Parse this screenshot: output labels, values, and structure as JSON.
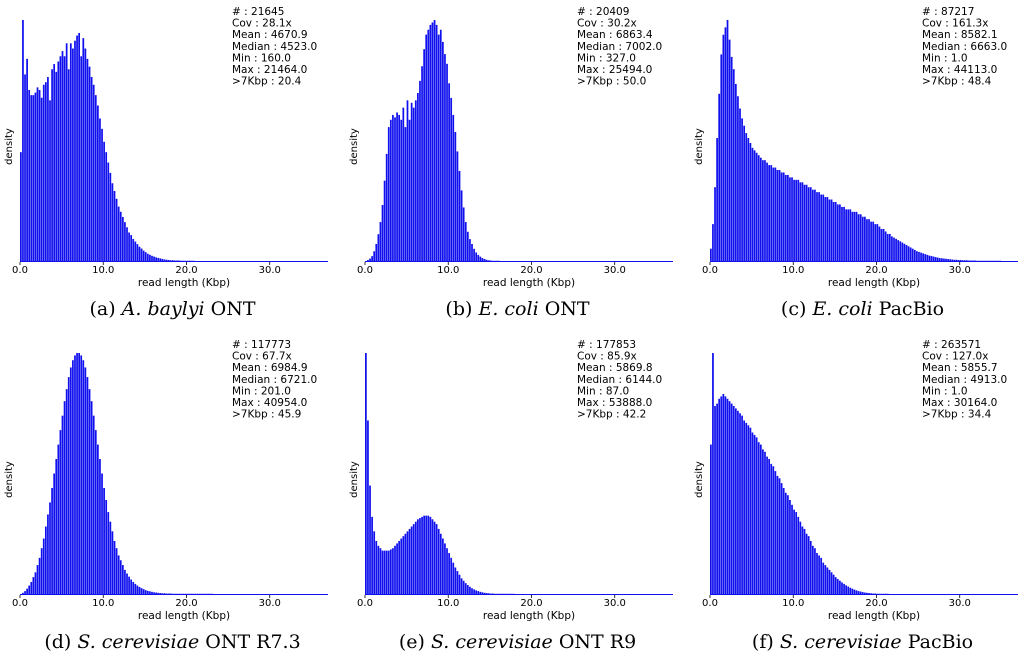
{
  "chart_data": [
    {
      "type": "bar",
      "caption": {
        "letter": "(a)",
        "species": "A. baylyi",
        "tech": "ONT"
      },
      "xlabel": "read length (Kbp)",
      "ylabel": "density",
      "xlim": [
        0,
        37
      ],
      "xticks": [
        "0.0",
        "10.0",
        "20.0",
        "30.0"
      ],
      "color": "#1010ee",
      "stats": [
        "# : 21645",
        "Cov : 28.1x",
        "Mean : 4670.9",
        "Median : 4523.0",
        "Min : 160.0",
        "Max : 21464.0",
        ">7Kbp : 20.4"
      ],
      "bin_width": 0.25,
      "values": [
        0.42,
        0.93,
        0.72,
        0.78,
        0.66,
        0.64,
        0.64,
        0.65,
        0.67,
        0.66,
        0.63,
        0.68,
        0.69,
        0.71,
        0.62,
        0.74,
        0.76,
        0.73,
        0.77,
        0.79,
        0.81,
        0.79,
        0.84,
        0.74,
        0.84,
        0.82,
        0.85,
        0.87,
        0.88,
        0.79,
        0.86,
        0.82,
        0.78,
        0.75,
        0.71,
        0.68,
        0.64,
        0.6,
        0.55,
        0.51,
        0.46,
        0.42,
        0.38,
        0.34,
        0.3,
        0.27,
        0.24,
        0.21,
        0.19,
        0.17,
        0.15,
        0.13,
        0.11,
        0.1,
        0.085,
        0.075,
        0.065,
        0.055,
        0.048,
        0.04,
        0.034,
        0.028,
        0.024,
        0.02,
        0.017,
        0.014,
        0.012,
        0.01,
        0.008,
        0.006,
        0.005,
        0.004,
        0.003,
        0.003,
        0.002,
        0.002,
        0.002,
        0.001,
        0.001,
        0.001,
        0.001,
        0.001,
        0.001,
        0.001
      ]
    },
    {
      "type": "bar",
      "caption": {
        "letter": "(b)",
        "species": "E. coli",
        "tech": "ONT"
      },
      "xlabel": "read length (Kbp)",
      "ylabel": "density",
      "xlim": [
        0,
        37
      ],
      "xticks": [
        "0.0",
        "10.0",
        "20.0",
        "30.0"
      ],
      "color": "#1010ee",
      "stats": [
        "# : 20409",
        "Cov : 30.2x",
        "Mean : 6863.4",
        "Median : 7002.0",
        "Min : 327.0",
        "Max : 25494.0",
        ">7Kbp : 50.0"
      ],
      "bin_width": 0.25,
      "values": [
        0,
        0.004,
        0.01,
        0.02,
        0.04,
        0.07,
        0.11,
        0.16,
        0.23,
        0.33,
        0.44,
        0.55,
        0.58,
        0.6,
        0.59,
        0.61,
        0.6,
        0.58,
        0.63,
        0.55,
        0.66,
        0.58,
        0.65,
        0.63,
        0.66,
        0.69,
        0.74,
        0.8,
        0.87,
        0.93,
        0.95,
        0.97,
        0.98,
        0.99,
        0.97,
        0.93,
        0.95,
        0.9,
        0.85,
        0.81,
        0.73,
        0.67,
        0.6,
        0.53,
        0.45,
        0.37,
        0.29,
        0.22,
        0.16,
        0.12,
        0.09,
        0.07,
        0.05,
        0.035,
        0.025,
        0.018,
        0.012,
        0.008,
        0.005,
        0.003,
        0.002,
        0.001,
        0.001,
        0.001,
        0.001
      ]
    },
    {
      "type": "bar",
      "caption": {
        "letter": "(c)",
        "species": "E. coli",
        "tech": "PacBio"
      },
      "xlabel": "read length (Kbp)",
      "ylabel": "density",
      "xlim": [
        0,
        37
      ],
      "xticks": [
        "0.0",
        "10.0",
        "20.0",
        "30.0"
      ],
      "color": "#1010ee",
      "stats": [
        "# : 87217",
        "Cov : 161.3x",
        "Mean : 8582.1",
        "Median : 6663.0",
        "Min : 1.0",
        "Max : 44113.0",
        ">7Kbp : 48.4"
      ],
      "bin_width": 0.25,
      "values": [
        0.05,
        0.15,
        0.3,
        0.5,
        0.68,
        0.84,
        0.92,
        0.95,
        0.98,
        0.9,
        0.83,
        0.78,
        0.72,
        0.67,
        0.62,
        0.58,
        0.55,
        0.52,
        0.5,
        0.48,
        0.46,
        0.45,
        0.44,
        0.43,
        0.42,
        0.41,
        0.41,
        0.4,
        0.39,
        0.39,
        0.38,
        0.38,
        0.37,
        0.37,
        0.36,
        0.36,
        0.35,
        0.35,
        0.34,
        0.34,
        0.33,
        0.33,
        0.33,
        0.32,
        0.32,
        0.31,
        0.31,
        0.3,
        0.3,
        0.29,
        0.29,
        0.28,
        0.28,
        0.27,
        0.27,
        0.26,
        0.26,
        0.25,
        0.25,
        0.24,
        0.24,
        0.23,
        0.23,
        0.22,
        0.22,
        0.21,
        0.21,
        0.21,
        0.2,
        0.2,
        0.2,
        0.19,
        0.19,
        0.18,
        0.18,
        0.17,
        0.17,
        0.16,
        0.16,
        0.15,
        0.15,
        0.14,
        0.13,
        0.13,
        0.12,
        0.11,
        0.11,
        0.1,
        0.095,
        0.09,
        0.085,
        0.08,
        0.075,
        0.07,
        0.065,
        0.06,
        0.055,
        0.05,
        0.045,
        0.04,
        0.037,
        0.034,
        0.031,
        0.028,
        0.025,
        0.022,
        0.02,
        0.018,
        0.016,
        0.014,
        0.012,
        0.011,
        0.01,
        0.009,
        0.008,
        0.007,
        0.006,
        0.005,
        0.005,
        0.004,
        0.004,
        0.003,
        0.003,
        0.003,
        0.002,
        0.002,
        0.002,
        0.002,
        0.001,
        0.001,
        0.001,
        0.001,
        0.001,
        0.001,
        0.001,
        0.001,
        0.001,
        0.001,
        0.001,
        0.001
      ]
    },
    {
      "type": "bar",
      "caption": {
        "letter": "(d)",
        "species": "S. cerevisiae",
        "tech": "ONT R7.3"
      },
      "xlabel": "read length (Kbp)",
      "ylabel": "density",
      "xlim": [
        0,
        37
      ],
      "xticks": [
        "0.0",
        "10.0",
        "20.0",
        "30.0"
      ],
      "color": "#1010ee",
      "stats": [
        "# : 117773",
        "Cov : 67.7x",
        "Mean : 6984.9",
        "Median : 6721.0",
        "Min : 201.0",
        "Max : 40954.0",
        ">7Kbp : 45.9"
      ],
      "bin_width": 0.25,
      "values": [
        0,
        0.005,
        0.012,
        0.022,
        0.035,
        0.05,
        0.07,
        0.09,
        0.12,
        0.15,
        0.19,
        0.23,
        0.28,
        0.33,
        0.38,
        0.44,
        0.5,
        0.56,
        0.62,
        0.68,
        0.74,
        0.8,
        0.85,
        0.9,
        0.94,
        0.97,
        0.99,
        1.0,
        1.0,
        0.99,
        0.97,
        0.94,
        0.9,
        0.85,
        0.8,
        0.74,
        0.68,
        0.62,
        0.56,
        0.5,
        0.44,
        0.39,
        0.34,
        0.3,
        0.26,
        0.22,
        0.19,
        0.16,
        0.14,
        0.12,
        0.1,
        0.085,
        0.072,
        0.06,
        0.05,
        0.042,
        0.035,
        0.029,
        0.024,
        0.02,
        0.016,
        0.013,
        0.011,
        0.009,
        0.007,
        0.006,
        0.005,
        0.004,
        0.003,
        0.003,
        0.002,
        0.002,
        0.002,
        0.001,
        0.001,
        0.001,
        0.001,
        0.001,
        0.001,
        0.001,
        0.001,
        0.001,
        0.001,
        0.001,
        0.001,
        0.001,
        0.001,
        0.001,
        0.001,
        0.001,
        0.001,
        0.001,
        0.001
      ]
    },
    {
      "type": "bar",
      "caption": {
        "letter": "(e)",
        "species": "S. cerevisiae",
        "tech": "ONT R9"
      },
      "xlabel": "read length (Kbp)",
      "ylabel": "density",
      "xlim": [
        0,
        37
      ],
      "xticks": [
        "0.0",
        "10.0",
        "20.0",
        "30.0"
      ],
      "color": "#1010ee",
      "stats": [
        "# : 177853",
        "Cov : 85.9x",
        "Mean : 5869.8",
        "Median : 6144.0",
        "Min : 87.0",
        "Max : 53888.0",
        ">7Kbp : 42.2"
      ],
      "bin_width": 0.25,
      "values": [
        1.0,
        0.72,
        0.45,
        0.32,
        0.26,
        0.22,
        0.2,
        0.19,
        0.18,
        0.18,
        0.18,
        0.18,
        0.185,
        0.19,
        0.2,
        0.21,
        0.22,
        0.23,
        0.24,
        0.25,
        0.26,
        0.27,
        0.28,
        0.29,
        0.3,
        0.31,
        0.315,
        0.32,
        0.325,
        0.325,
        0.325,
        0.32,
        0.31,
        0.3,
        0.29,
        0.27,
        0.25,
        0.23,
        0.21,
        0.19,
        0.17,
        0.15,
        0.13,
        0.11,
        0.095,
        0.08,
        0.065,
        0.055,
        0.045,
        0.037,
        0.03,
        0.024,
        0.019,
        0.015,
        0.012,
        0.009,
        0.007,
        0.005,
        0.004,
        0.003,
        0.002,
        0.002,
        0.001,
        0.001,
        0.001,
        0.001,
        0.001,
        0.001,
        0.001,
        0.001,
        0.001,
        0.001
      ]
    },
    {
      "type": "bar",
      "caption": {
        "letter": "(f)",
        "species": "S. cerevisiae",
        "tech": "PacBio"
      },
      "xlabel": "read length (Kbp)",
      "ylabel": "density",
      "xlim": [
        0,
        37
      ],
      "xticks": [
        "0.0",
        "10.0",
        "20.0",
        "30.0"
      ],
      "color": "#1010ee",
      "stats": [
        "# : 263571",
        "Cov : 127.0x",
        "Mean : 5855.7",
        "Median : 4913.0",
        "Min : 1.0",
        "Max : 30164.0",
        ">7Kbp : 34.4"
      ],
      "bin_width": 0.25,
      "values": [
        0.62,
        1.0,
        0.78,
        0.79,
        0.81,
        0.82,
        0.83,
        0.82,
        0.81,
        0.8,
        0.79,
        0.78,
        0.77,
        0.76,
        0.75,
        0.74,
        0.72,
        0.71,
        0.7,
        0.69,
        0.67,
        0.66,
        0.65,
        0.63,
        0.62,
        0.6,
        0.59,
        0.57,
        0.56,
        0.54,
        0.53,
        0.51,
        0.49,
        0.48,
        0.46,
        0.44,
        0.42,
        0.41,
        0.39,
        0.37,
        0.35,
        0.34,
        0.32,
        0.3,
        0.28,
        0.27,
        0.25,
        0.24,
        0.22,
        0.2,
        0.19,
        0.17,
        0.16,
        0.15,
        0.13,
        0.12,
        0.11,
        0.1,
        0.09,
        0.08,
        0.07,
        0.062,
        0.055,
        0.048,
        0.042,
        0.036,
        0.031,
        0.026,
        0.022,
        0.018,
        0.015,
        0.012,
        0.01,
        0.008,
        0.006,
        0.005,
        0.004,
        0.003,
        0.002,
        0.002,
        0.001,
        0.001,
        0.001,
        0.001,
        0.001,
        0.001
      ]
    }
  ]
}
